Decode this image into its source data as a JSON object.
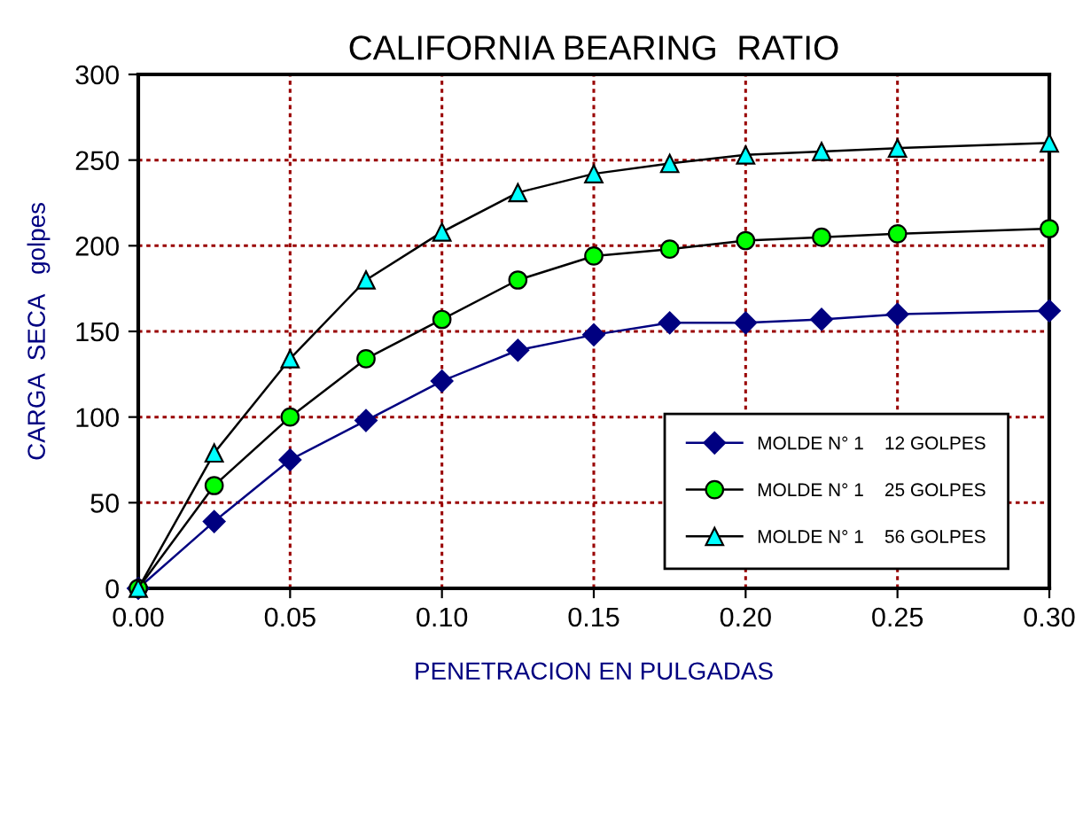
{
  "chart_data": {
    "type": "line",
    "title": "CALIFORNIA BEARING  RATIO",
    "xlabel": "PENETRACION EN PULGADAS",
    "ylabel": "CARGA  SECA   golpes",
    "x": [
      0,
      0.025,
      0.05,
      0.075,
      0.1,
      0.125,
      0.15,
      0.175,
      0.2,
      0.225,
      0.25,
      0.3
    ],
    "series": [
      {
        "name": "MOLDE N° 1    12 GOLPES",
        "color": "#000080",
        "marker": "diamond",
        "values": [
          0,
          39,
          75,
          98,
          121,
          139,
          148,
          155,
          155,
          157,
          160,
          162
        ]
      },
      {
        "name": "MOLDE N° 1    25 GOLPES",
        "color": "#00ff00",
        "marker": "circle",
        "values": [
          0,
          60,
          100,
          134,
          157,
          180,
          194,
          198,
          203,
          205,
          207,
          210
        ]
      },
      {
        "name": "MOLDE N° 1    56 GOLPES",
        "color": "#00ffff",
        "marker": "triangle",
        "values": [
          0,
          79,
          134,
          180,
          208,
          231,
          242,
          248,
          253,
          255,
          257,
          260
        ]
      }
    ],
    "xlim": [
      0,
      0.3
    ],
    "xticks": [
      {
        "value": 0,
        "label": "0.00"
      },
      {
        "value": 0.05,
        "label": "0.05"
      },
      {
        "value": 0.1,
        "label": "0.10"
      },
      {
        "value": 0.15,
        "label": "0.15"
      },
      {
        "value": 0.2,
        "label": "0.20"
      },
      {
        "value": 0.25,
        "label": "0.25"
      },
      {
        "value": 0.3,
        "label": "0.30"
      }
    ],
    "ylim": [
      0,
      300
    ],
    "yticks": [
      0,
      50,
      100,
      150,
      200,
      250,
      300
    ],
    "grid": true,
    "legend": "bottom right",
    "line_style": "solid"
  }
}
